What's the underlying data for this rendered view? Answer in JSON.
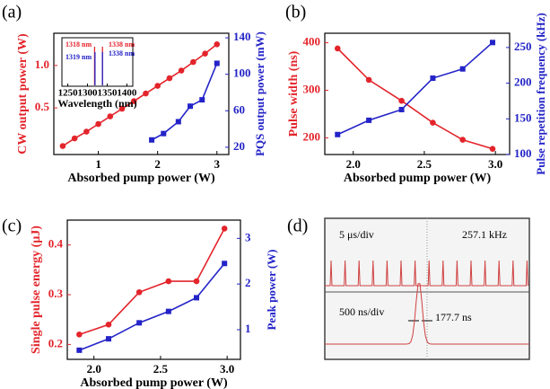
{
  "chart_data": [
    {
      "type": "line",
      "label": "(a)",
      "xlabel": "Absorbed pump power (W)",
      "ylabel": "CW output power (W)",
      "y2label": "PQS output power (mW)",
      "xlim": [
        0.25,
        3.2
      ],
      "xticks": [
        1,
        2,
        3
      ],
      "ylim": [
        -0.05,
        1.38
      ],
      "yticks": [
        0.5,
        {
          "value": 1,
          "label": "1.0"
        }
      ],
      "y2lim": [
        12,
        145
      ],
      "y2ticks": [
        20,
        60,
        100,
        140
      ],
      "series": [
        {
          "color": "#e3242b",
          "marker": "circle",
          "x": [
            0.4,
            0.6,
            0.8,
            1.0,
            1.2,
            1.4,
            1.6,
            1.8,
            2.0,
            2.2,
            2.4,
            2.6,
            2.8,
            3.0
          ],
          "values": [
            0.05,
            0.14,
            0.22,
            0.31,
            0.4,
            0.49,
            0.58,
            0.67,
            0.76,
            0.85,
            0.94,
            1.04,
            1.14,
            1.25
          ]
        },
        {
          "color": "#2323c8",
          "marker": "square",
          "axis": "y2",
          "x": [
            1.9,
            2.1,
            2.35,
            2.55,
            2.75,
            3.0
          ],
          "values": [
            28,
            35,
            48,
            65,
            72,
            112
          ]
        }
      ],
      "inset": {
        "xlabel": "Wavelength (nm)",
        "xlim": [
          1235,
          1415
        ],
        "xticks": [
          1250,
          1300,
          1350,
          1400
        ],
        "series": [
          {
            "color": "#e3242b",
            "peaks": [
              1318,
              1338
            ],
            "labels": [
              "1318 nm",
              "1338 nm"
            ]
          },
          {
            "color": "#2323c8",
            "peaks": [
              1319,
              1338
            ],
            "labels": [
              "1319 nm",
              "1338 nm"
            ]
          }
        ]
      }
    },
    {
      "type": "line",
      "label": "(b)",
      "xlabel": "Absorbed pump power (W)",
      "ylabel": "Pulse width (ns)",
      "y2label": "Pulse repetition frequency (kHz)",
      "xlim": [
        1.8,
        3.1
      ],
      "xticks": [
        {
          "value": 2,
          "label": "2.0"
        },
        2.5,
        {
          "value": 3,
          "label": "3.0"
        }
      ],
      "ylim": [
        165,
        420
      ],
      "yticks": [
        200,
        300,
        400
      ],
      "y2lim": [
        100,
        270
      ],
      "y2ticks": [
        100,
        150,
        200,
        250
      ],
      "series": [
        {
          "color": "#e3242b",
          "marker": "circle",
          "x": [
            1.89,
            2.11,
            2.34,
            2.56,
            2.77,
            2.98
          ],
          "values": [
            388,
            322,
            278,
            232,
            196,
            177
          ]
        },
        {
          "color": "#2323c8",
          "marker": "square",
          "axis": "y2",
          "x": [
            1.89,
            2.11,
            2.34,
            2.56,
            2.77,
            2.98
          ],
          "values": [
            128,
            148,
            163,
            207,
            220,
            257
          ]
        }
      ]
    },
    {
      "type": "line",
      "label": "(c)",
      "xlabel": "Absorbed pump power (W)",
      "ylabel": "Single pulse energy (μJ)",
      "y2label": "Peak power (W)",
      "xlim": [
        1.8,
        3.1
      ],
      "xticks": [
        {
          "value": 2,
          "label": "2.0"
        },
        2.5,
        {
          "value": 3,
          "label": "3.0"
        }
      ],
      "ylim": [
        0.17,
        0.45
      ],
      "yticks": [
        0.2,
        0.3,
        0.4
      ],
      "y2lim": [
        0.35,
        3.4
      ],
      "y2ticks": [
        1,
        2,
        3
      ],
      "series": [
        {
          "color": "#e3242b",
          "marker": "circle",
          "x": [
            1.89,
            2.11,
            2.34,
            2.56,
            2.77,
            2.98
          ],
          "values": [
            0.22,
            0.24,
            0.305,
            0.327,
            0.327,
            0.433
          ]
        },
        {
          "color": "#2323c8",
          "marker": "square",
          "axis": "y2",
          "x": [
            1.89,
            2.11,
            2.34,
            2.56,
            2.77,
            2.98
          ],
          "values": [
            0.55,
            0.8,
            1.15,
            1.4,
            1.7,
            2.45
          ]
        }
      ]
    }
  ],
  "panel_d": {
    "label": "(d)",
    "top_scale": "5 μs/div",
    "top_freq": "257.1 kHz",
    "bottom_scale": "500 ns/div",
    "bottom_width": "177.7 ns"
  }
}
